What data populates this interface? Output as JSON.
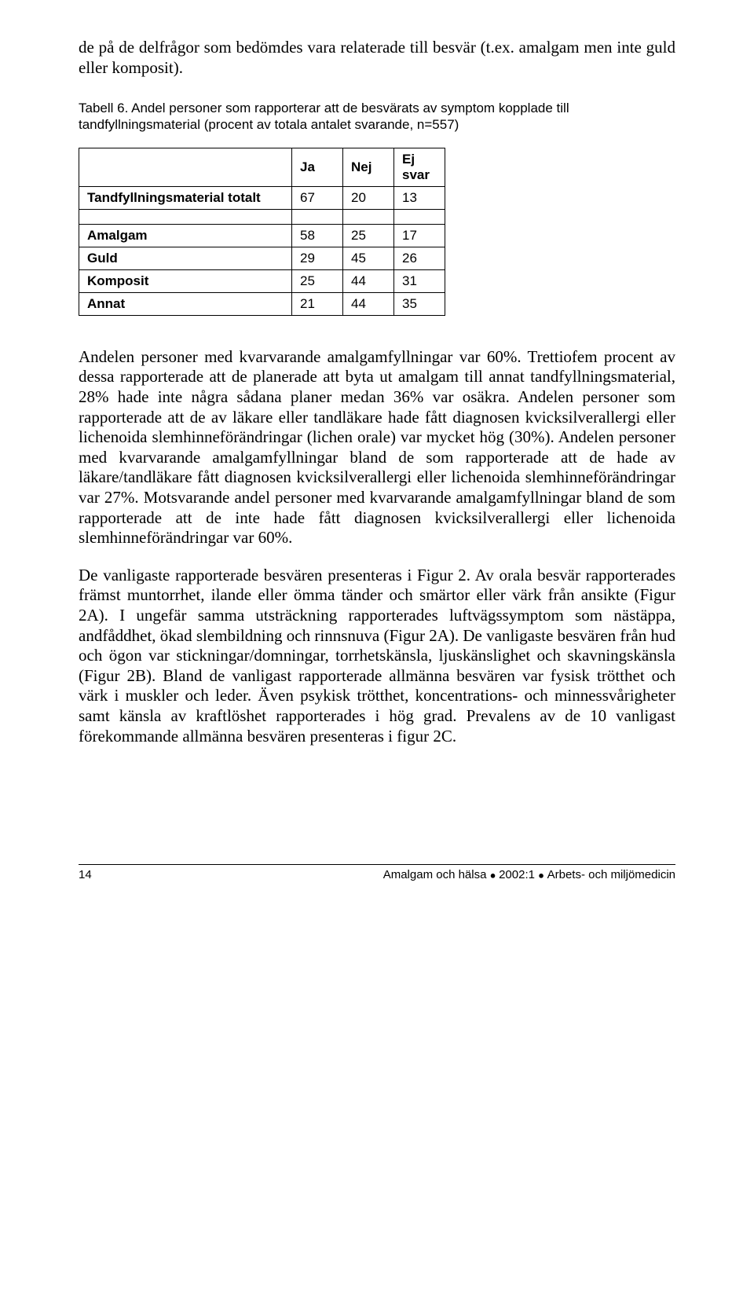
{
  "intro": {
    "p1": "de på de delfrågor som bedömdes vara relaterade till besvär (t.ex. amalgam men inte guld eller komposit)."
  },
  "table": {
    "caption": "Tabell 6. Andel personer som rapporterar att de besvärats av symptom kopplade till tandfyllningsmaterial (procent av totala antalet svarande, n=557)",
    "head": {
      "c1": "Ja",
      "c2": "Nej",
      "c3": "Ej svar"
    },
    "rows": [
      {
        "label": "Tandfyllningsmaterial totalt",
        "c1": "67",
        "c2": "20",
        "c3": "13"
      }
    ],
    "rows2": [
      {
        "label": "Amalgam",
        "c1": "58",
        "c2": "25",
        "c3": "17"
      },
      {
        "label": "Guld",
        "c1": "29",
        "c2": "45",
        "c3": "26"
      },
      {
        "label": "Komposit",
        "c1": "25",
        "c2": "44",
        "c3": "31"
      },
      {
        "label": "Annat",
        "c1": "21",
        "c2": "44",
        "c3": "35"
      }
    ]
  },
  "body": {
    "p2": "Andelen personer med kvarvarande amalgamfyllningar var 60%. Trettiofem procent av dessa rapporterade att de planerade att byta ut amalgam till annat tandfyllningsmaterial, 28% hade inte några sådana planer medan 36% var osäkra. Andelen personer som rapporterade att de av läkare eller tandläkare hade fått diagnosen kvicksilverallergi eller lichenoida slemhinneförändringar (lichen orale) var mycket hög (30%). Andelen personer med kvarvarande amalgamfyllningar bland de som rapporterade att de hade av läkare/tandläkare fått diagnosen kvicksilverallergi eller lichenoida slemhinneförändringar var 27%. Motsvarande andel personer med kvarvarande amalgamfyllningar bland de som rapporterade att de inte hade fått diagnosen kvicksilverallergi eller lichenoida slemhinneförändringar var 60%.",
    "p3": "De vanligaste rapporterade besvären presenteras i Figur 2. Av orala besvär rapporterades främst muntorrhet, ilande eller ömma tänder och smärtor eller värk från ansikte (Figur 2A). I ungefär samma utsträckning rapporterades luftvägssymptom som nästäppa, andfåddhet, ökad slembildning och rinnsnuva (Figur 2A). De vanligaste besvären från hud och ögon var stickningar/domningar, torrhetskänsla, ljuskänslighet och skavningskänsla (Figur 2B). Bland de vanligast rapporterade allmänna besvären var fysisk trötthet och värk i muskler och leder. Även psykisk trötthet, koncentrations- och minnessvårigheter samt känsla av kraftlöshet rapporterades i hög grad. Prevalens av de 10 vanligast förekommande allmänna besvären presenteras i figur 2C."
  },
  "footer": {
    "page": "14",
    "right_a": "Amalgam och hälsa",
    "right_b": "2002:1",
    "right_c": "Arbets- och miljömedicin"
  }
}
